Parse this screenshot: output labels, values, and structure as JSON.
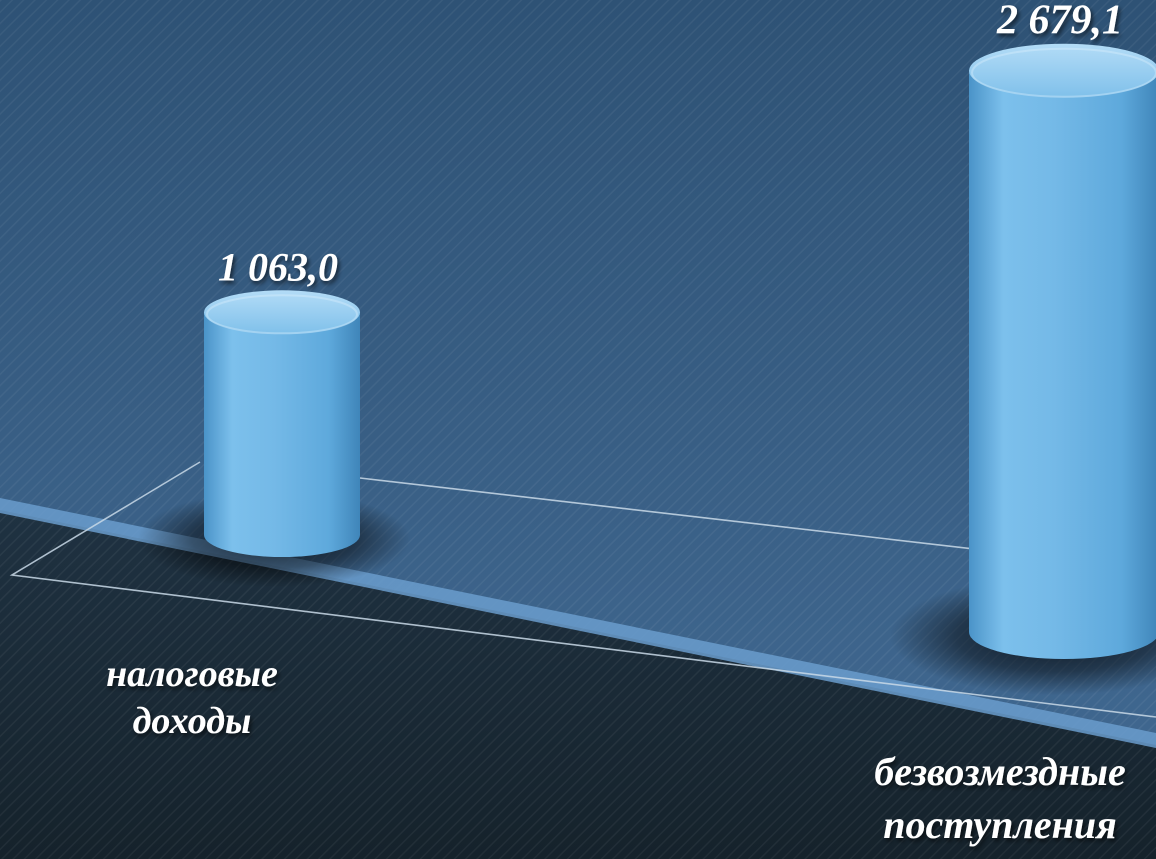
{
  "chart_data": {
    "type": "bar",
    "categories": [
      [
        "налоговые",
        "доходы"
      ],
      [
        "безвозмездные",
        "поступления"
      ]
    ],
    "values": [
      1063.0,
      2679.1
    ],
    "value_labels": [
      "1 063,0",
      "2 679,1"
    ],
    "title": "",
    "xlabel": "",
    "ylabel": "",
    "ylim": [
      0,
      2750
    ],
    "grid": false,
    "legend": "none",
    "bar_shape": "cylinder",
    "colors": {
      "bar": "#6fb6e6",
      "bar_dark": "#3d86bd",
      "bar_light": "#a9d8f6",
      "background_top": "#2e5275",
      "background_bottom": "#426a93",
      "floor_dark": "#18262f",
      "accent_stripe": "#6a9ccc",
      "label": "#ffffff"
    }
  }
}
